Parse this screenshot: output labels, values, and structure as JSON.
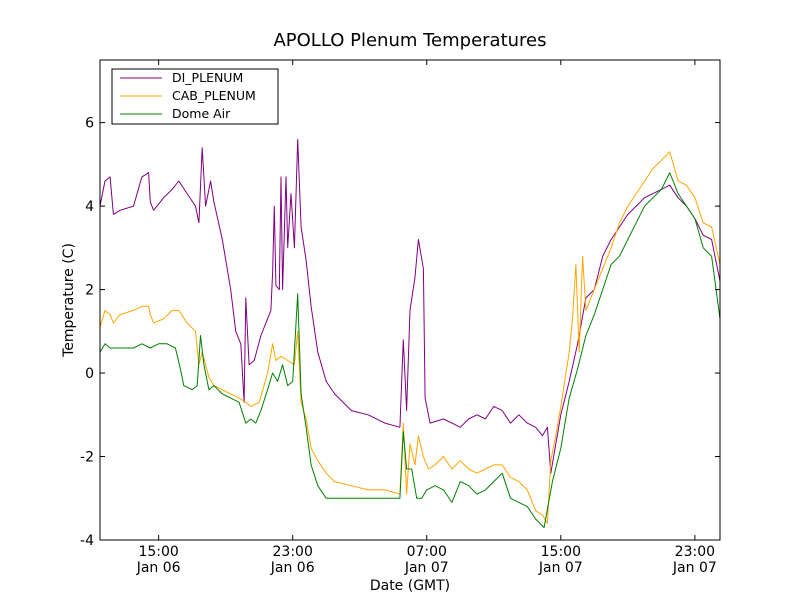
{
  "chart_data": {
    "type": "line",
    "title": "APOLLO Plenum Temperatures",
    "xlabel": "Date (GMT)",
    "ylabel": "Temperature (C)",
    "xlim": [
      0,
      37
    ],
    "ylim": [
      -4,
      7.5
    ],
    "grid": false,
    "legend_position": "top-left",
    "y_ticks": [
      {
        "value": -4,
        "label": "-4"
      },
      {
        "value": -2,
        "label": "-2"
      },
      {
        "value": 0,
        "label": "0"
      },
      {
        "value": 2,
        "label": "2"
      },
      {
        "value": 4,
        "label": "4"
      },
      {
        "value": 6,
        "label": "6"
      }
    ],
    "x_ticks": [
      {
        "value": 3.5,
        "line1": "15:00",
        "line2": "Jan 06"
      },
      {
        "value": 11.5,
        "line1": "23:00",
        "line2": "Jan 06"
      },
      {
        "value": 19.5,
        "line1": "07:00",
        "line2": "Jan 07"
      },
      {
        "value": 27.5,
        "line1": "15:00",
        "line2": "Jan 07"
      },
      {
        "value": 35.5,
        "line1": "23:00",
        "line2": "Jan 07"
      }
    ],
    "series": [
      {
        "name": "DI_PLENUM",
        "color": "#800080",
        "points": [
          [
            0,
            4.0
          ],
          [
            0.3,
            4.6
          ],
          [
            0.6,
            4.7
          ],
          [
            0.8,
            3.8
          ],
          [
            1.2,
            3.9
          ],
          [
            2.0,
            4.0
          ],
          [
            2.5,
            4.7
          ],
          [
            2.9,
            4.8
          ],
          [
            3.0,
            4.1
          ],
          [
            3.2,
            3.9
          ],
          [
            3.8,
            4.2
          ],
          [
            4.3,
            4.4
          ],
          [
            4.7,
            4.6
          ],
          [
            5.2,
            4.3
          ],
          [
            5.7,
            4.0
          ],
          [
            5.9,
            3.6
          ],
          [
            6.1,
            5.4
          ],
          [
            6.3,
            4.0
          ],
          [
            6.6,
            4.6
          ],
          [
            6.8,
            4.1
          ],
          [
            7.3,
            3.2
          ],
          [
            7.8,
            2.0
          ],
          [
            8.1,
            1.0
          ],
          [
            8.4,
            0.7
          ],
          [
            8.6,
            -0.7
          ],
          [
            8.7,
            1.8
          ],
          [
            8.9,
            0.2
          ],
          [
            9.2,
            0.3
          ],
          [
            9.6,
            0.9
          ],
          [
            10.0,
            1.3
          ],
          [
            10.2,
            1.5
          ],
          [
            10.3,
            2.4
          ],
          [
            10.4,
            4.0
          ],
          [
            10.5,
            2.1
          ],
          [
            10.7,
            2.0
          ],
          [
            10.8,
            4.7
          ],
          [
            10.9,
            2.0
          ],
          [
            11.1,
            4.7
          ],
          [
            11.2,
            3.0
          ],
          [
            11.4,
            4.3
          ],
          [
            11.6,
            3.0
          ],
          [
            11.8,
            5.6
          ],
          [
            12.0,
            3.5
          ],
          [
            12.3,
            2.7
          ],
          [
            12.6,
            1.6
          ],
          [
            13.0,
            0.5
          ],
          [
            13.5,
            -0.2
          ],
          [
            14.0,
            -0.5
          ],
          [
            15.0,
            -0.9
          ],
          [
            16.0,
            -1.0
          ],
          [
            17.0,
            -1.2
          ],
          [
            17.9,
            -1.3
          ],
          [
            18.1,
            0.8
          ],
          [
            18.3,
            -0.9
          ],
          [
            18.5,
            1.5
          ],
          [
            18.8,
            2.3
          ],
          [
            19.0,
            3.2
          ],
          [
            19.3,
            2.5
          ],
          [
            19.4,
            -0.6
          ],
          [
            19.7,
            -1.2
          ],
          [
            20.5,
            -1.1
          ],
          [
            21.0,
            -1.2
          ],
          [
            21.5,
            -1.3
          ],
          [
            22.0,
            -1.1
          ],
          [
            22.5,
            -1.0
          ],
          [
            23.0,
            -1.1
          ],
          [
            23.5,
            -0.8
          ],
          [
            24.0,
            -0.9
          ],
          [
            24.5,
            -1.2
          ],
          [
            25.0,
            -1.0
          ],
          [
            25.5,
            -1.2
          ],
          [
            26.0,
            -1.3
          ],
          [
            26.4,
            -1.5
          ],
          [
            26.7,
            -1.3
          ],
          [
            26.9,
            -2.4
          ],
          [
            27.2,
            -1.7
          ],
          [
            27.5,
            -1.0
          ],
          [
            28.0,
            -0.2
          ],
          [
            28.5,
            0.7
          ],
          [
            29.0,
            1.8
          ],
          [
            29.5,
            2.0
          ],
          [
            30.0,
            2.8
          ],
          [
            30.5,
            3.2
          ],
          [
            31.0,
            3.5
          ],
          [
            31.5,
            3.8
          ],
          [
            32.0,
            4.0
          ],
          [
            32.5,
            4.2
          ],
          [
            33.0,
            4.3
          ],
          [
            33.5,
            4.4
          ],
          [
            34.0,
            4.5
          ],
          [
            34.5,
            4.2
          ],
          [
            35.0,
            4.0
          ],
          [
            35.5,
            3.7
          ],
          [
            36.0,
            3.3
          ],
          [
            36.5,
            3.2
          ],
          [
            37.0,
            2.2
          ]
        ]
      },
      {
        "name": "CAB_PLENUM",
        "color": "#FFA500",
        "points": [
          [
            0,
            1.1
          ],
          [
            0.3,
            1.5
          ],
          [
            0.6,
            1.4
          ],
          [
            0.8,
            1.2
          ],
          [
            1.2,
            1.4
          ],
          [
            2.0,
            1.5
          ],
          [
            2.5,
            1.6
          ],
          [
            2.9,
            1.6
          ],
          [
            3.0,
            1.4
          ],
          [
            3.2,
            1.2
          ],
          [
            3.8,
            1.3
          ],
          [
            4.3,
            1.5
          ],
          [
            4.7,
            1.5
          ],
          [
            5.2,
            1.2
          ],
          [
            5.7,
            1.0
          ],
          [
            5.9,
            0.2
          ],
          [
            6.1,
            0.5
          ],
          [
            6.5,
            -0.1
          ],
          [
            6.8,
            -0.3
          ],
          [
            7.3,
            -0.4
          ],
          [
            7.8,
            -0.5
          ],
          [
            8.3,
            -0.6
          ],
          [
            8.7,
            -0.7
          ],
          [
            9.0,
            -0.8
          ],
          [
            9.5,
            -0.7
          ],
          [
            10.0,
            0.0
          ],
          [
            10.3,
            0.7
          ],
          [
            10.5,
            0.3
          ],
          [
            10.8,
            0.4
          ],
          [
            11.2,
            0.3
          ],
          [
            11.6,
            0.2
          ],
          [
            11.8,
            1.0
          ],
          [
            12.0,
            -0.7
          ],
          [
            12.3,
            -1.1
          ],
          [
            12.6,
            -1.8
          ],
          [
            13.0,
            -2.1
          ],
          [
            13.5,
            -2.4
          ],
          [
            14.0,
            -2.6
          ],
          [
            15.0,
            -2.7
          ],
          [
            16.0,
            -2.8
          ],
          [
            17.0,
            -2.8
          ],
          [
            17.9,
            -2.9
          ],
          [
            18.1,
            -1.2
          ],
          [
            18.3,
            -2.9
          ],
          [
            18.5,
            -1.7
          ],
          [
            18.8,
            -2.2
          ],
          [
            19.0,
            -1.5
          ],
          [
            19.3,
            -2.0
          ],
          [
            19.6,
            -2.3
          ],
          [
            20.0,
            -2.2
          ],
          [
            20.5,
            -2.0
          ],
          [
            21.0,
            -2.3
          ],
          [
            21.5,
            -2.1
          ],
          [
            22.0,
            -2.3
          ],
          [
            22.5,
            -2.4
          ],
          [
            23.0,
            -2.3
          ],
          [
            23.5,
            -2.2
          ],
          [
            24.0,
            -2.2
          ],
          [
            24.5,
            -2.5
          ],
          [
            25.0,
            -2.6
          ],
          [
            25.5,
            -2.8
          ],
          [
            26.0,
            -3.3
          ],
          [
            26.4,
            -3.4
          ],
          [
            26.7,
            -3.6
          ],
          [
            26.9,
            -2.1
          ],
          [
            27.2,
            -1.5
          ],
          [
            27.5,
            -0.8
          ],
          [
            28.0,
            0.5
          ],
          [
            28.2,
            1.3
          ],
          [
            28.4,
            2.6
          ],
          [
            28.6,
            0.5
          ],
          [
            28.8,
            2.8
          ],
          [
            29.0,
            1.5
          ],
          [
            29.5,
            2.0
          ],
          [
            30.0,
            2.5
          ],
          [
            30.5,
            3.0
          ],
          [
            31.0,
            3.6
          ],
          [
            31.5,
            4.0
          ],
          [
            32.0,
            4.3
          ],
          [
            32.5,
            4.6
          ],
          [
            33.0,
            4.9
          ],
          [
            33.5,
            5.1
          ],
          [
            34.0,
            5.3
          ],
          [
            34.5,
            4.6
          ],
          [
            35.0,
            4.5
          ],
          [
            35.5,
            4.2
          ],
          [
            36.0,
            3.6
          ],
          [
            36.5,
            3.5
          ],
          [
            37.0,
            2.6
          ]
        ]
      },
      {
        "name": "Dome Air",
        "color": "#008000",
        "points": [
          [
            0,
            0.5
          ],
          [
            0.3,
            0.7
          ],
          [
            0.6,
            0.6
          ],
          [
            1.2,
            0.6
          ],
          [
            2.0,
            0.6
          ],
          [
            2.5,
            0.7
          ],
          [
            3.0,
            0.6
          ],
          [
            3.5,
            0.7
          ],
          [
            4.0,
            0.7
          ],
          [
            4.5,
            0.6
          ],
          [
            4.8,
            0.1
          ],
          [
            5.0,
            -0.3
          ],
          [
            5.5,
            -0.4
          ],
          [
            5.8,
            -0.3
          ],
          [
            6.0,
            0.9
          ],
          [
            6.2,
            0.2
          ],
          [
            6.5,
            -0.4
          ],
          [
            6.8,
            -0.3
          ],
          [
            7.3,
            -0.5
          ],
          [
            7.8,
            -0.6
          ],
          [
            8.3,
            -0.7
          ],
          [
            8.7,
            -1.2
          ],
          [
            9.0,
            -1.1
          ],
          [
            9.3,
            -1.2
          ],
          [
            9.6,
            -0.9
          ],
          [
            10.0,
            -0.4
          ],
          [
            10.3,
            0.0
          ],
          [
            10.6,
            -0.2
          ],
          [
            10.9,
            0.2
          ],
          [
            11.2,
            -0.3
          ],
          [
            11.5,
            -0.2
          ],
          [
            11.8,
            1.9
          ],
          [
            12.0,
            -0.5
          ],
          [
            12.3,
            -1.3
          ],
          [
            12.6,
            -2.2
          ],
          [
            13.0,
            -2.7
          ],
          [
            13.5,
            -3.0
          ],
          [
            14.0,
            -3.0
          ],
          [
            15.0,
            -3.0
          ],
          [
            16.0,
            -3.0
          ],
          [
            17.0,
            -3.0
          ],
          [
            17.9,
            -3.0
          ],
          [
            18.1,
            -1.4
          ],
          [
            18.3,
            -2.3
          ],
          [
            18.6,
            -2.3
          ],
          [
            18.9,
            -3.0
          ],
          [
            19.2,
            -3.0
          ],
          [
            19.5,
            -2.8
          ],
          [
            20.0,
            -2.7
          ],
          [
            20.5,
            -2.8
          ],
          [
            21.0,
            -3.1
          ],
          [
            21.5,
            -2.6
          ],
          [
            22.0,
            -2.7
          ],
          [
            22.5,
            -2.9
          ],
          [
            23.0,
            -2.8
          ],
          [
            23.5,
            -2.6
          ],
          [
            24.0,
            -2.4
          ],
          [
            24.5,
            -3.0
          ],
          [
            25.0,
            -3.1
          ],
          [
            25.5,
            -3.2
          ],
          [
            26.0,
            -3.5
          ],
          [
            26.5,
            -3.7
          ],
          [
            27.0,
            -2.6
          ],
          [
            27.5,
            -1.8
          ],
          [
            28.0,
            -0.6
          ],
          [
            28.5,
            0.1
          ],
          [
            29.0,
            0.9
          ],
          [
            29.5,
            1.4
          ],
          [
            30.0,
            2.0
          ],
          [
            30.5,
            2.6
          ],
          [
            31.0,
            2.8
          ],
          [
            31.5,
            3.2
          ],
          [
            32.0,
            3.6
          ],
          [
            32.5,
            4.0
          ],
          [
            33.0,
            4.2
          ],
          [
            33.5,
            4.4
          ],
          [
            34.0,
            4.8
          ],
          [
            34.5,
            4.3
          ],
          [
            35.0,
            4.0
          ],
          [
            35.5,
            3.7
          ],
          [
            36.0,
            3.0
          ],
          [
            36.5,
            2.8
          ],
          [
            37.0,
            1.3
          ]
        ]
      }
    ]
  }
}
